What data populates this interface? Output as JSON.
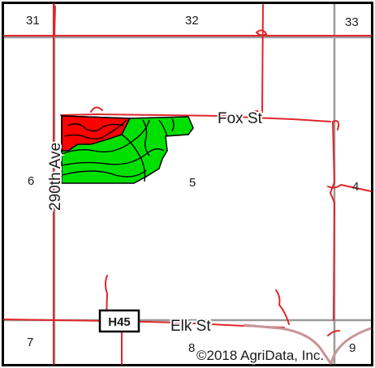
{
  "map": {
    "sections": [
      {
        "id": "31",
        "label": "31"
      },
      {
        "id": "32",
        "label": "32"
      },
      {
        "id": "33",
        "label": "33"
      },
      {
        "id": "6",
        "label": "6"
      },
      {
        "id": "5",
        "label": "5"
      },
      {
        "id": "4",
        "label": "4"
      },
      {
        "id": "7",
        "label": "7"
      },
      {
        "id": "8",
        "label": "8"
      },
      {
        "id": "9",
        "label": "9"
      }
    ],
    "roads": {
      "fox_st": "Fox St",
      "elk_st": "Elk St",
      "ave_290th": "290th Ave",
      "highway_shield": "H45"
    },
    "copyright": "©2018 AgriData, Inc.",
    "colors": {
      "frame": "#000000",
      "grid": "#9a9a9a",
      "road_line": "#e0262a",
      "highway_line": "#c89496",
      "field_green": "#00e000",
      "field_red": "#ff0000",
      "field_outline": "#000000"
    }
  }
}
